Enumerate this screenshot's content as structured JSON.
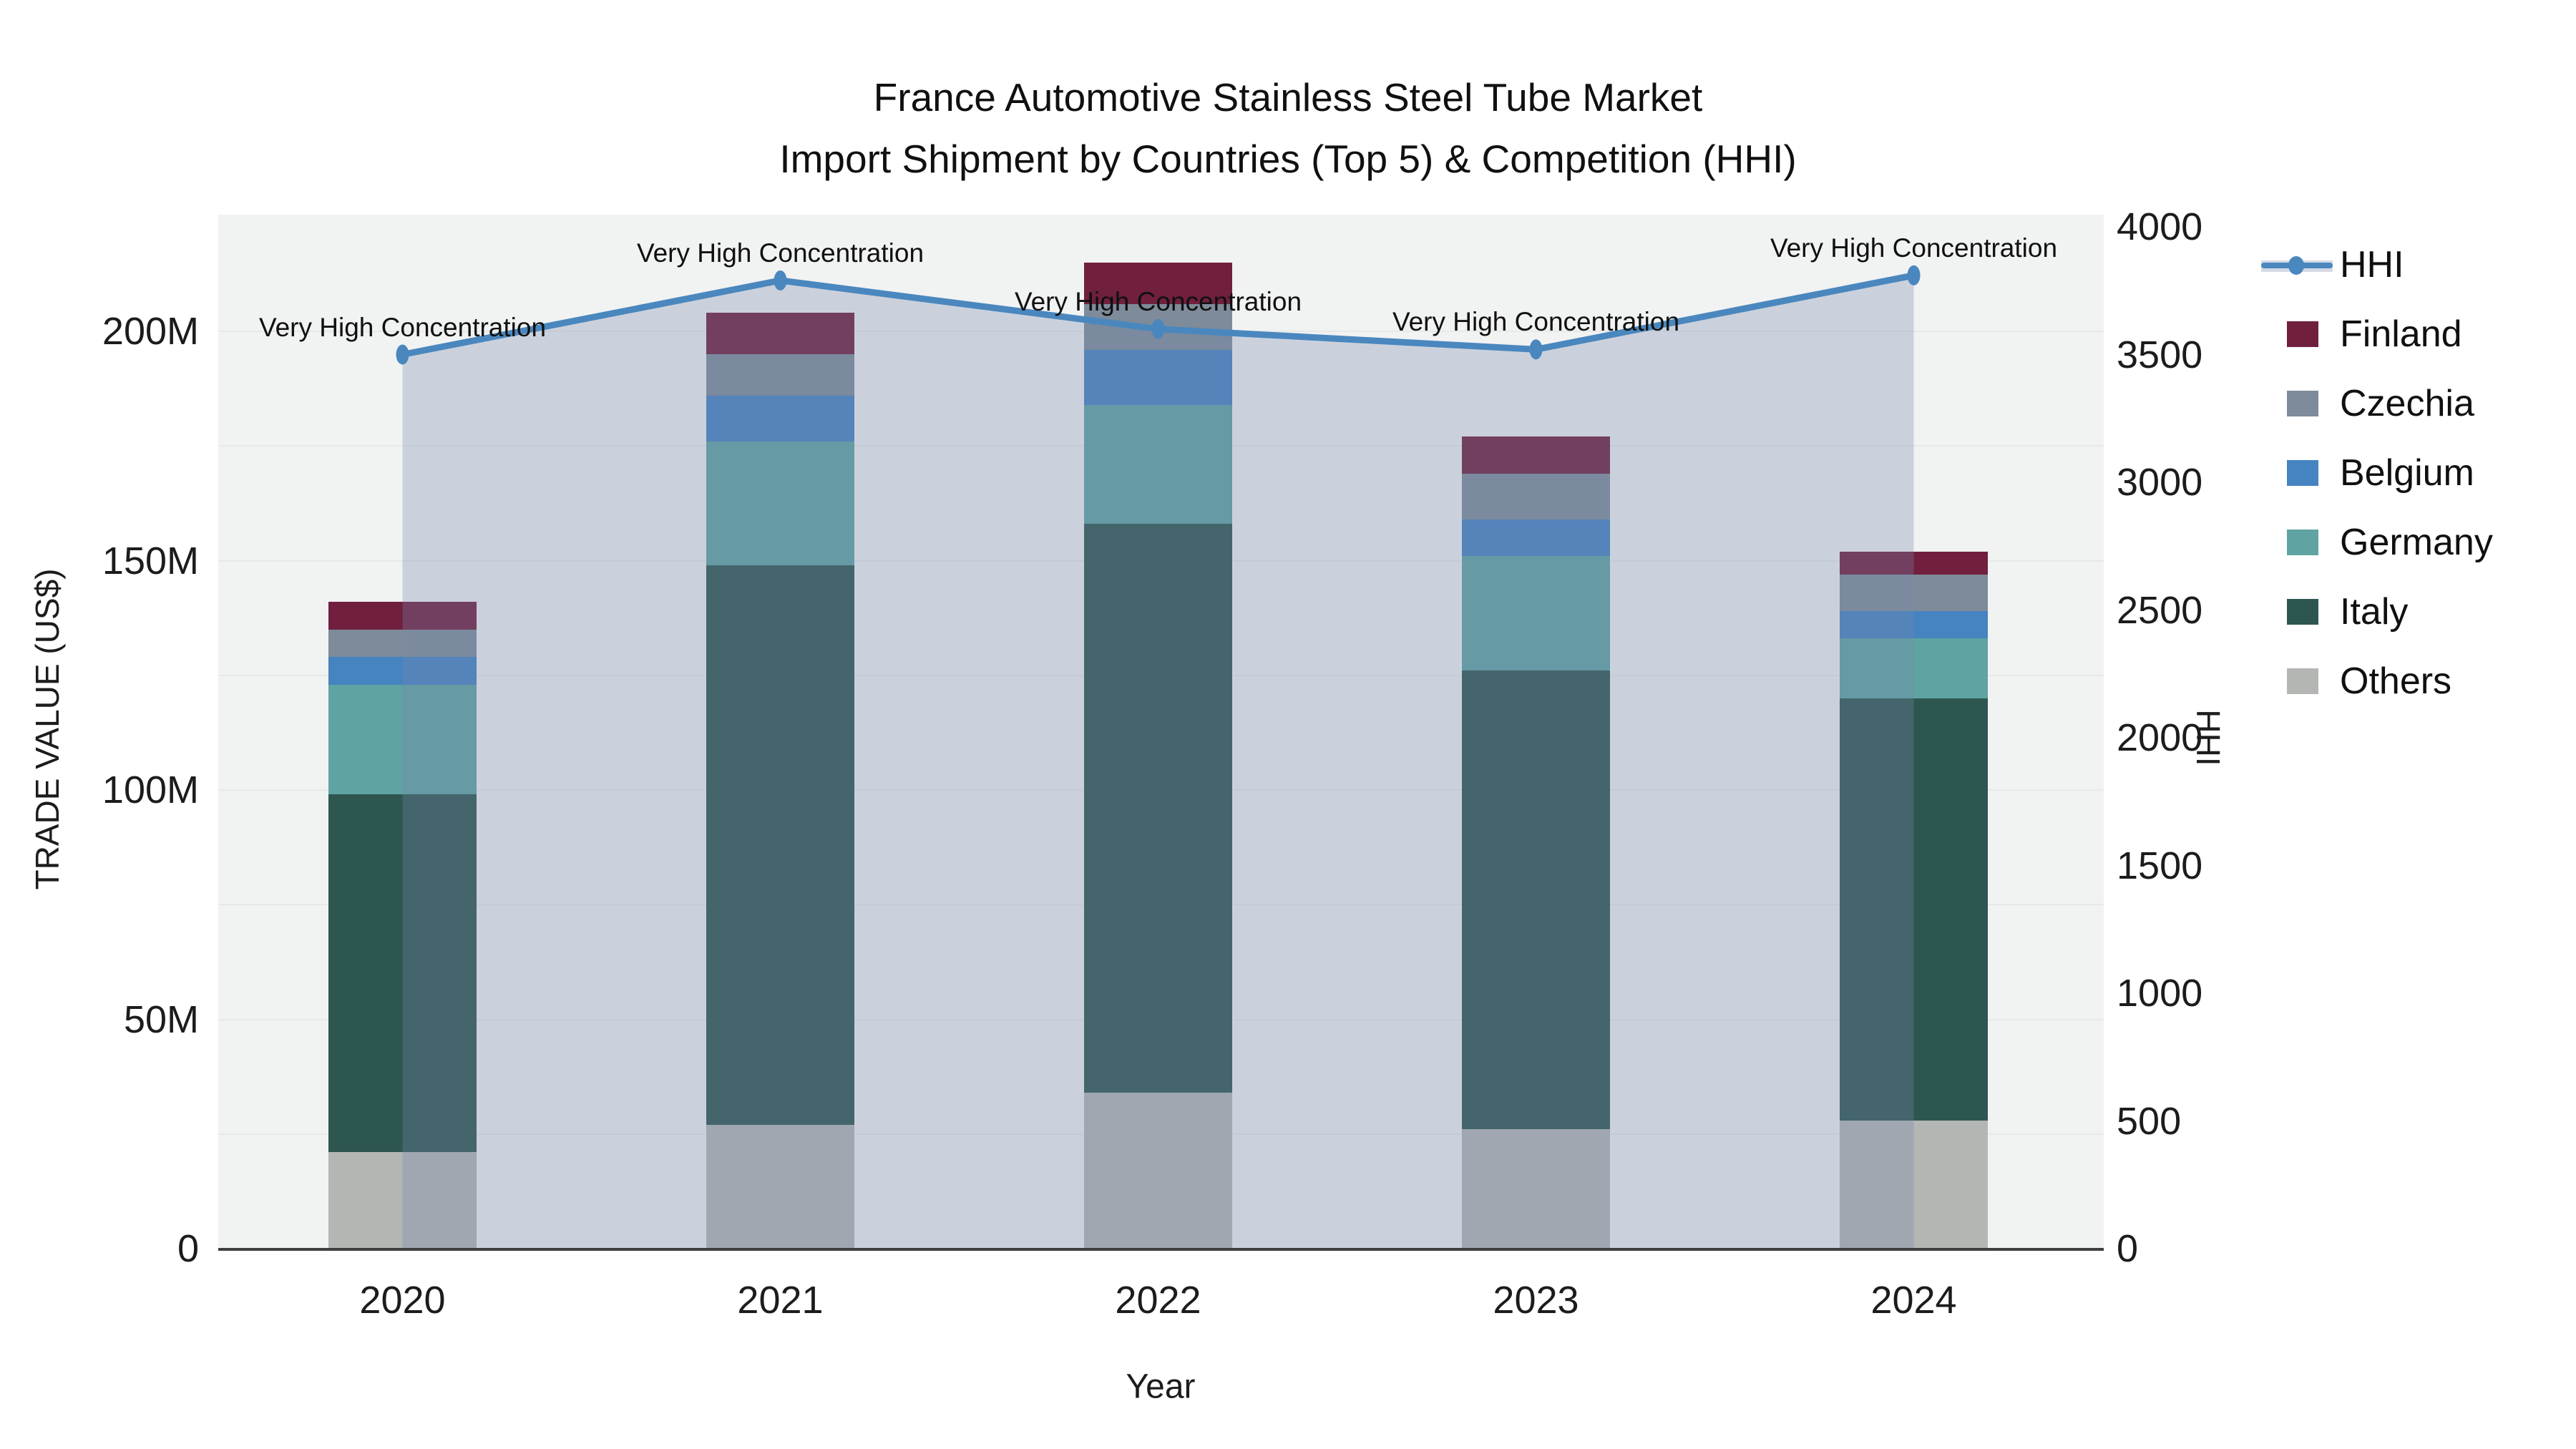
{
  "title": {
    "line1": "France Automotive Stainless Steel Tube Market",
    "line2": "Import Shipment by Countries (Top 5) & Competition (HHI)"
  },
  "chart_data": {
    "type": "bar+line",
    "title": "France Automotive Stainless Steel Tube Market Import Shipment by Countries (Top 5) & Competition (HHI)",
    "categories": [
      "2020",
      "2021",
      "2022",
      "2023",
      "2024"
    ],
    "stack_order_bottom_to_top": [
      "Others",
      "Italy",
      "Germany",
      "Belgium",
      "Czechia",
      "Finland"
    ],
    "series": [
      {
        "name": "Others",
        "color": "#b3b6b3",
        "values": [
          21,
          27,
          34,
          26,
          28
        ]
      },
      {
        "name": "Italy",
        "color": "#2e5650",
        "values": [
          78,
          122,
          124,
          100,
          92
        ]
      },
      {
        "name": "Germany",
        "color": "#5fa3a3",
        "values": [
          24,
          27,
          26,
          25,
          13
        ]
      },
      {
        "name": "Belgium",
        "color": "#4583c1",
        "values": [
          6,
          10,
          12,
          8,
          6
        ]
      },
      {
        "name": "Czechia",
        "color": "#7d8b9a",
        "values": [
          6,
          9,
          10,
          10,
          8
        ]
      },
      {
        "name": "Finland",
        "color": "#701f3f",
        "values": [
          6,
          9,
          9,
          8,
          5
        ]
      }
    ],
    "bar_totals_musd": [
      141,
      204,
      215,
      177,
      152
    ],
    "line": {
      "name": "HHI",
      "color": "#4a87be",
      "area_color": "rgba(119,135,171,0.31)",
      "values": [
        3500,
        3790,
        3600,
        3520,
        3810
      ]
    },
    "annotations": [
      {
        "x": "2020",
        "text": "Very High Concentration"
      },
      {
        "x": "2021",
        "text": "Very High Concentration"
      },
      {
        "x": "2022",
        "text": "Very High Concentration"
      },
      {
        "x": "2023",
        "text": "Very High Concentration"
      },
      {
        "x": "2024",
        "text": "Very High Concentration"
      }
    ],
    "y_left": {
      "title": "TRADE VALUE (US$)",
      "unit": "M US$",
      "ticks": [
        {
          "v": 0,
          "label": "0"
        },
        {
          "v": 50,
          "label": "50M"
        },
        {
          "v": 100,
          "label": "100M"
        },
        {
          "v": 150,
          "label": "150M"
        },
        {
          "v": 200,
          "label": "200M"
        }
      ],
      "gridline_step": 25
    },
    "y_right": {
      "title": "HHI",
      "ticks": [
        {
          "v": 0,
          "label": "0"
        },
        {
          "v": 500,
          "label": "500"
        },
        {
          "v": 1000,
          "label": "1000"
        },
        {
          "v": 1500,
          "label": "1500"
        },
        {
          "v": 2000,
          "label": "2000"
        },
        {
          "v": 2500,
          "label": "2500"
        },
        {
          "v": 3000,
          "label": "3000"
        },
        {
          "v": 3500,
          "label": "3500"
        },
        {
          "v": 4000,
          "label": "4000"
        }
      ]
    },
    "x": {
      "title": "Year"
    },
    "legend": {
      "position": "right",
      "order": [
        "HHI",
        "Finland",
        "Czechia",
        "Belgium",
        "Germany",
        "Italy",
        "Others"
      ]
    }
  }
}
